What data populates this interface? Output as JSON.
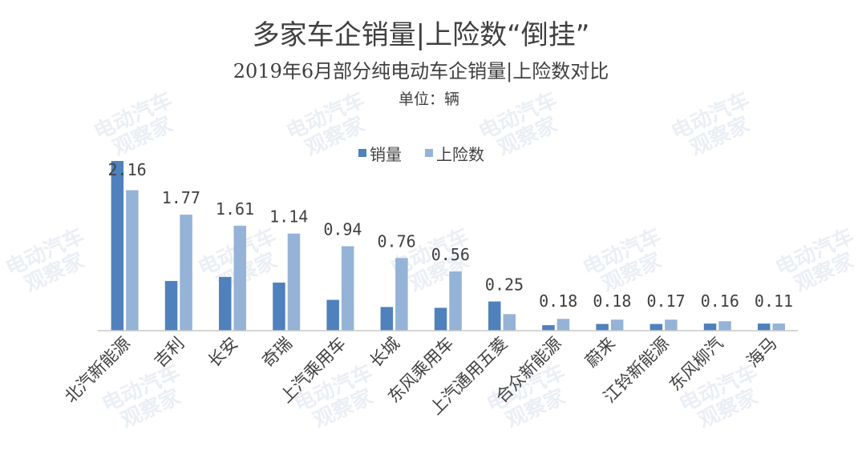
{
  "chart_data": {
    "type": "bar",
    "title": "多家车企销量|上险数“倒挂”",
    "subtitle": "2019年6月部分纯电动车企销量|上险数对比",
    "unit": "单位：辆",
    "categories": [
      "北汽新能源",
      "吉利",
      "长安",
      "奇瑞",
      "上汽乘用车",
      "长城",
      "东风乘用车",
      "上汽通用五菱",
      "合众新能源",
      "蔚来",
      "江铃新能源",
      "东风柳汽",
      "海马"
    ],
    "series": [
      {
        "name": "销量",
        "color": "#4f81bd",
        "values": [
          21500,
          6300,
          6800,
          6100,
          3900,
          3000,
          2900,
          3700,
          700,
          850,
          850,
          900,
          900
        ]
      },
      {
        "name": "上险数",
        "color": "#95b3d7",
        "values": [
          17800,
          14700,
          13300,
          12300,
          10700,
          9200,
          7500,
          2100,
          1500,
          1400,
          1400,
          1200,
          900
        ]
      }
    ],
    "ratio_labels": [
      "2.16",
      "1.77",
      "1.61",
      "1.14",
      "0.94",
      "0.76",
      "0.56",
      "0.25",
      "0.18",
      "0.18",
      "0.17",
      "0.16",
      "0.11"
    ],
    "ylim": [
      0,
      21500
    ],
    "legend": "top-center",
    "grid": false
  },
  "watermark": {
    "line1": "电动汽车",
    "line2": "观察家"
  }
}
